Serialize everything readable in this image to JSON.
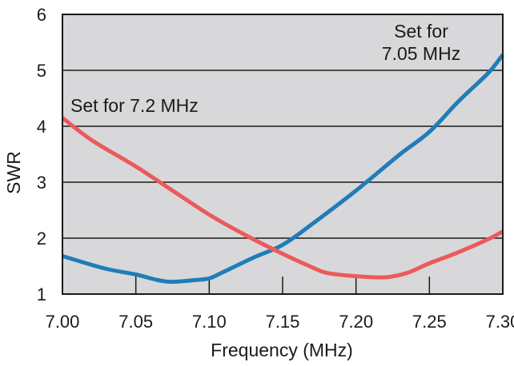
{
  "chart_data": {
    "type": "line",
    "title": "",
    "xlabel": "Frequency (MHz)",
    "ylabel": "SWR",
    "xlim": [
      7.0,
      7.3
    ],
    "ylim": [
      1,
      6
    ],
    "x_ticks": [
      "7.00",
      "7.05",
      "7.10",
      "7.15",
      "7.20",
      "7.25",
      "7.30"
    ],
    "y_ticks": [
      "1",
      "2",
      "3",
      "4",
      "5",
      "6"
    ],
    "grid": "horizontal",
    "plot_background": "#d8d8da",
    "series": [
      {
        "name": "Set for 7.05 MHz",
        "color": "#1f7db8",
        "x": [
          7.0,
          7.01,
          7.03,
          7.05,
          7.065,
          7.075,
          7.09,
          7.1,
          7.11,
          7.13,
          7.15,
          7.17,
          7.2,
          7.23,
          7.25,
          7.27,
          7.29,
          7.3
        ],
        "y": [
          1.68,
          1.6,
          1.45,
          1.35,
          1.25,
          1.22,
          1.25,
          1.28,
          1.4,
          1.65,
          1.88,
          2.25,
          2.85,
          3.5,
          3.9,
          4.45,
          4.95,
          5.28
        ]
      },
      {
        "name": "Set for 7.2 MHz",
        "color": "#ec5a5a",
        "x": [
          7.0,
          7.02,
          7.05,
          7.075,
          7.1,
          7.125,
          7.15,
          7.17,
          7.18,
          7.2,
          7.22,
          7.235,
          7.25,
          7.27,
          7.29,
          7.3
        ],
        "y": [
          4.15,
          3.75,
          3.28,
          2.85,
          2.42,
          2.05,
          1.72,
          1.48,
          1.38,
          1.32,
          1.3,
          1.38,
          1.55,
          1.75,
          1.98,
          2.12
        ]
      }
    ],
    "annotations": {
      "blue_line1": "Set for",
      "blue_line2": "7.05 MHz",
      "red": "Set for 7.2 MHz"
    }
  }
}
